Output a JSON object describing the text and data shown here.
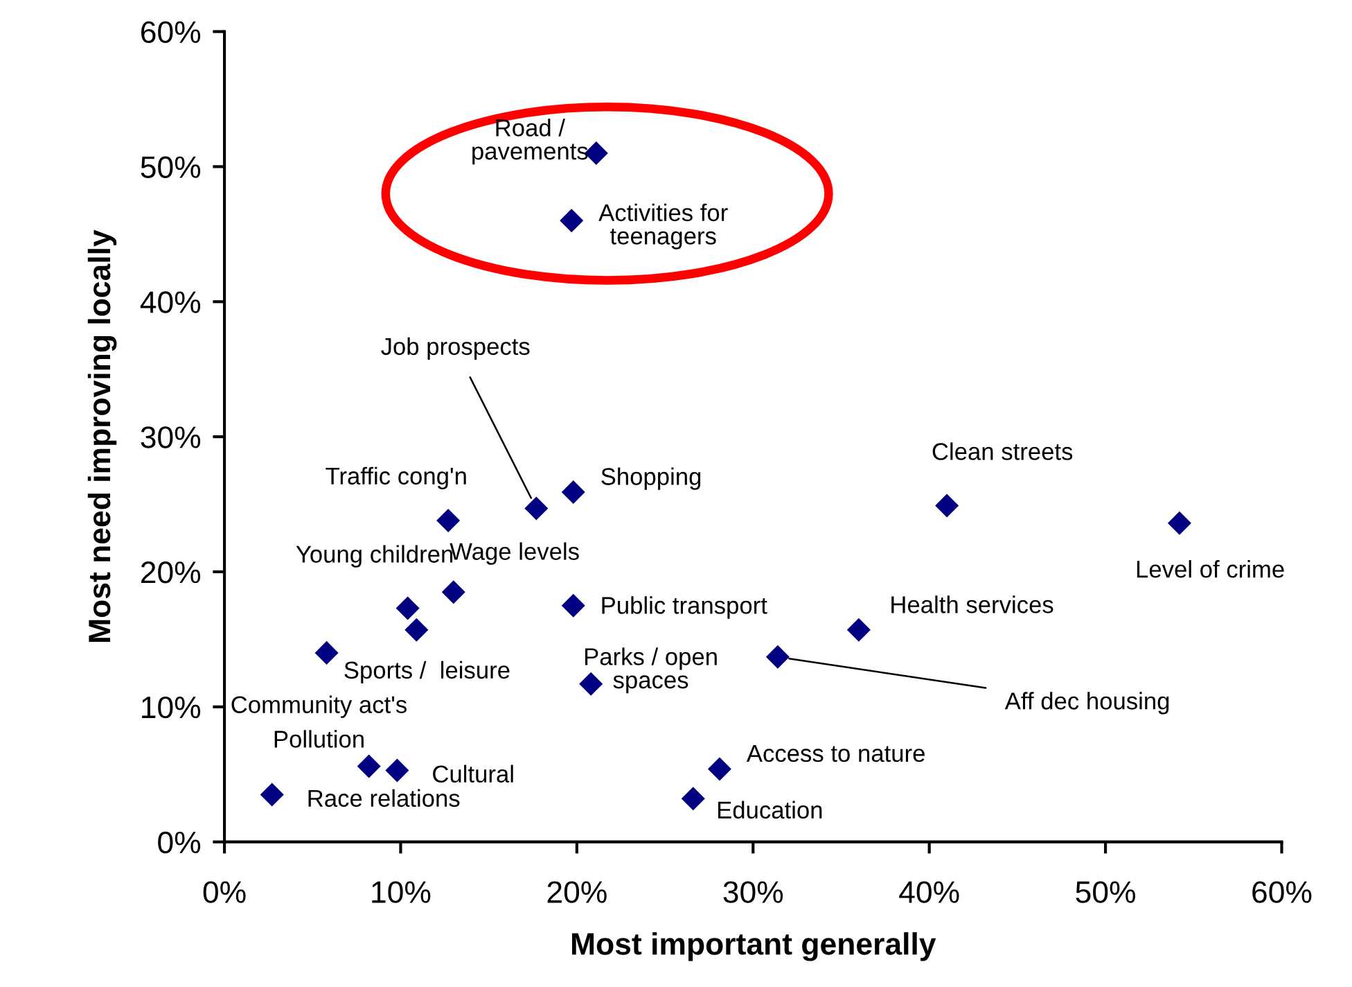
{
  "chart_data": {
    "type": "scatter",
    "xlabel": "Most important generally",
    "ylabel": "Most need improving locally",
    "x": [
      21.1,
      19.7,
      17.7,
      19.8,
      12.7,
      10.4,
      13.0,
      19.8,
      10.9,
      5.8,
      20.8,
      31.4,
      36.0,
      8.2,
      9.8,
      2.7,
      28.1,
      26.6,
      41.0,
      54.2
    ],
    "series": [
      {
        "color": "#000080",
        "values": [
          51.0,
          46.0,
          24.7,
          25.9,
          23.8,
          17.3,
          18.5,
          17.5,
          15.7,
          14.0,
          11.7,
          13.7,
          15.7,
          5.6,
          5.3,
          3.5,
          5.4,
          3.2,
          24.9,
          23.6
        ]
      }
    ],
    "marker": "diamond",
    "xlim": [
      0,
      60
    ],
    "ylim": [
      0,
      60
    ],
    "xticks": [
      {
        "value": 0,
        "label": "0%"
      },
      {
        "value": 10,
        "label": "10%"
      },
      {
        "value": 20,
        "label": "20%"
      },
      {
        "value": 30,
        "label": "30%"
      },
      {
        "value": 40,
        "label": "40%"
      },
      {
        "value": 50,
        "label": "50%"
      },
      {
        "value": 60,
        "label": "60%"
      }
    ],
    "yticks": [
      {
        "value": 0,
        "label": "0%"
      },
      {
        "value": 10,
        "label": "10%"
      },
      {
        "value": 20,
        "label": "20%"
      },
      {
        "value": 30,
        "label": "30%"
      },
      {
        "value": 40,
        "label": "40%"
      },
      {
        "value": 50,
        "label": "50%"
      },
      {
        "value": 60,
        "label": "60%"
      }
    ],
    "grid": false,
    "annotations": [
      {
        "text": "Road /\npavements",
        "x": 21.1,
        "y": 51.0
      },
      {
        "text": "Activities for\nteenagers",
        "x": 19.7,
        "y": 46.0
      },
      {
        "text": "Job prospects",
        "x": 17.7,
        "y": 24.7
      },
      {
        "text": "Shopping",
        "x": 19.8,
        "y": 25.9
      },
      {
        "text": "Traffic cong'n",
        "x": 12.7,
        "y": 23.8
      },
      {
        "text": "Young children",
        "x": 10.4,
        "y": 17.3
      },
      {
        "text": "Wage levels",
        "x": 13.0,
        "y": 18.5
      },
      {
        "text": "Public transport",
        "x": 19.8,
        "y": 17.5
      },
      {
        "text": "Sports /  leisure",
        "x": 10.9,
        "y": 15.7
      },
      {
        "text": "Community act's",
        "x": 5.8,
        "y": 14.0
      },
      {
        "text": "Parks / open\nspaces",
        "x": 20.8,
        "y": 11.7
      },
      {
        "text": "Aff dec housing",
        "x": 31.4,
        "y": 13.7
      },
      {
        "text": "Health services",
        "x": 36.0,
        "y": 15.7
      },
      {
        "text": "Pollution",
        "x": 8.2,
        "y": 5.6
      },
      {
        "text": "Cultural",
        "x": 9.8,
        "y": 5.3
      },
      {
        "text": "Race relations",
        "x": 2.7,
        "y": 3.5
      },
      {
        "text": "Access to nature",
        "x": 28.1,
        "y": 5.4
      },
      {
        "text": "Education",
        "x": 26.6,
        "y": 3.2
      },
      {
        "text": "Clean streets",
        "x": 41.0,
        "y": 24.9
      },
      {
        "text": "Level of crime",
        "x": 54.2,
        "y": 23.6
      }
    ]
  }
}
